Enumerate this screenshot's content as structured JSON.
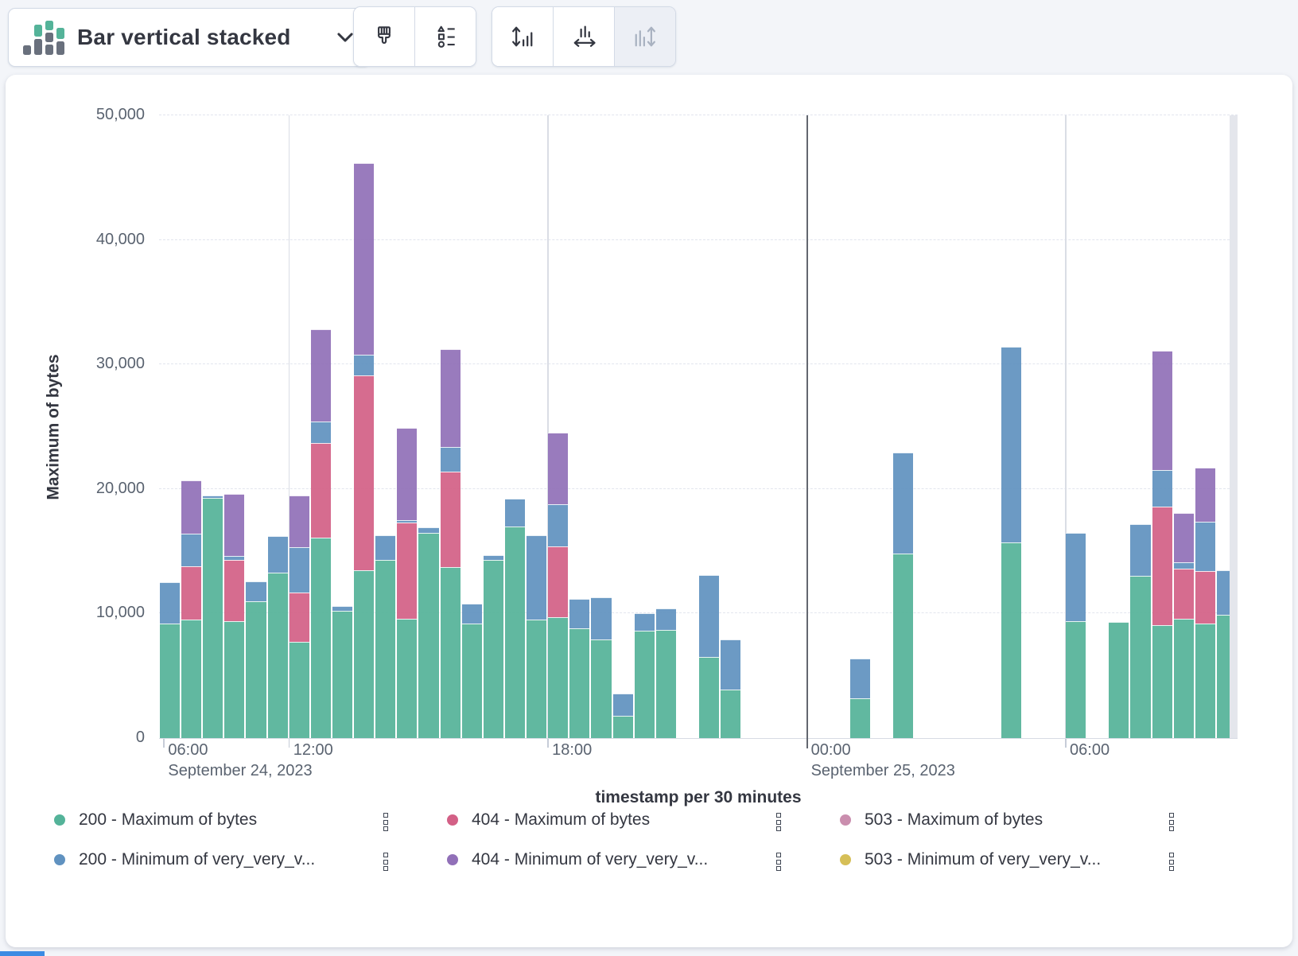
{
  "toolbar": {
    "chart_type": {
      "label": "Bar vertical stacked",
      "icon": "bar-vertical-stacked-icon"
    },
    "buttons": [
      {
        "name": "visual-options",
        "icon": "paint-brush-icon",
        "disabled": false
      },
      {
        "name": "legend-options",
        "icon": "legend-list-icon",
        "disabled": false
      },
      {
        "name": "left-axis",
        "icon": "left-axis-icon",
        "disabled": false
      },
      {
        "name": "bottom-axis",
        "icon": "bottom-axis-icon",
        "disabled": false
      },
      {
        "name": "right-axis",
        "icon": "right-axis-icon",
        "disabled": true
      }
    ]
  },
  "chart_data": {
    "type": "bar",
    "stacked": true,
    "xlabel": "timestamp per 30 minutes",
    "ylabel": "Maximum of bytes",
    "ylim": [
      0,
      50000
    ],
    "grid": "horizontal-dashed",
    "legend_position": "bottom",
    "yticks": [
      {
        "v": 0,
        "label": "0"
      },
      {
        "v": 10000,
        "label": "10,000"
      },
      {
        "v": 20000,
        "label": "20,000"
      },
      {
        "v": 30000,
        "label": "30,000"
      },
      {
        "v": 40000,
        "label": "40,000"
      },
      {
        "v": 50000,
        "label": "50,000"
      }
    ],
    "xticks": [
      {
        "label": "06:00",
        "pos": 0.004,
        "grid": false,
        "stub": true,
        "strong": false
      },
      {
        "label": "12:00",
        "pos": 0.12,
        "grid": true,
        "stub": true,
        "strong": false
      },
      {
        "label": "18:00",
        "pos": 0.36,
        "grid": true,
        "stub": true,
        "strong": false
      },
      {
        "label": "00:00",
        "pos": 0.6,
        "grid": true,
        "stub": true,
        "strong": true
      },
      {
        "label": "06:00",
        "pos": 0.84,
        "grid": true,
        "stub": true,
        "strong": false
      }
    ],
    "date_labels": [
      {
        "label": "September 24, 2023",
        "pos": 0.004
      },
      {
        "label": "September 25, 2023",
        "pos": 0.6
      }
    ],
    "slots_total": 50,
    "stack_order": [
      "200 - Maximum of bytes",
      "404 - Maximum of bytes",
      "200 - Minimum of very_very_v...",
      "404 - Minimum of very_very_v..."
    ],
    "stack_colors": [
      "#54b399",
      "#d36086",
      "#6092c0",
      "#9170b8"
    ],
    "buckets": [
      {
        "slot": 0,
        "stack": [
          9200,
          0,
          3300,
          0
        ]
      },
      {
        "slot": 1,
        "stack": [
          9500,
          4300,
          2600,
          4300
        ]
      },
      {
        "slot": 2,
        "stack": [
          19300,
          0,
          200,
          0
        ]
      },
      {
        "slot": 3,
        "stack": [
          9400,
          4900,
          300,
          5000
        ]
      },
      {
        "slot": 4,
        "stack": [
          11000,
          0,
          1600,
          0
        ]
      },
      {
        "slot": 5,
        "stack": [
          13300,
          0,
          2900,
          0
        ]
      },
      {
        "slot": 6,
        "stack": [
          7700,
          4000,
          3600,
          4200
        ]
      },
      {
        "slot": 7,
        "stack": [
          16100,
          7600,
          1700,
          7400
        ]
      },
      {
        "slot": 8,
        "stack": [
          10200,
          0,
          400,
          0
        ]
      },
      {
        "slot": 9,
        "stack": [
          13500,
          15600,
          1700,
          15400
        ]
      },
      {
        "slot": 10,
        "stack": [
          14300,
          0,
          2000,
          0
        ]
      },
      {
        "slot": 11,
        "stack": [
          9600,
          7700,
          200,
          7400
        ]
      },
      {
        "slot": 12,
        "stack": [
          16500,
          0,
          400,
          0
        ]
      },
      {
        "slot": 13,
        "stack": [
          13700,
          7700,
          2000,
          7800
        ]
      },
      {
        "slot": 14,
        "stack": [
          9200,
          0,
          1600,
          0
        ]
      },
      {
        "slot": 15,
        "stack": [
          14300,
          0,
          400,
          0
        ]
      },
      {
        "slot": 16,
        "stack": [
          17000,
          0,
          2200,
          0
        ]
      },
      {
        "slot": 17,
        "stack": [
          9500,
          0,
          6800,
          0
        ]
      },
      {
        "slot": 18,
        "stack": [
          9700,
          5700,
          3400,
          5700
        ]
      },
      {
        "slot": 19,
        "stack": [
          8800,
          0,
          2400,
          0
        ]
      },
      {
        "slot": 20,
        "stack": [
          7900,
          0,
          3400,
          0
        ]
      },
      {
        "slot": 21,
        "stack": [
          1800,
          0,
          1800,
          0
        ]
      },
      {
        "slot": 22,
        "stack": [
          8600,
          0,
          1400,
          0
        ]
      },
      {
        "slot": 23,
        "stack": [
          8700,
          0,
          1700,
          0
        ]
      },
      {
        "slot": 25,
        "stack": [
          6500,
          0,
          6600,
          0
        ]
      },
      {
        "slot": 26,
        "stack": [
          3900,
          0,
          4000,
          0
        ]
      },
      {
        "slot": 32,
        "stack": [
          3200,
          0,
          3200,
          0
        ]
      },
      {
        "slot": 34,
        "stack": [
          14800,
          0,
          8100,
          0
        ]
      },
      {
        "slot": 39,
        "stack": [
          15700,
          0,
          15700,
          0
        ]
      },
      {
        "slot": 42,
        "stack": [
          9400,
          0,
          7100,
          0
        ]
      },
      {
        "slot": 44,
        "stack": [
          9300,
          0,
          0,
          0
        ]
      },
      {
        "slot": 45,
        "stack": [
          13000,
          0,
          4200,
          0
        ]
      },
      {
        "slot": 46,
        "stack": [
          9100,
          9500,
          2900,
          9600
        ]
      },
      {
        "slot": 47,
        "stack": [
          9600,
          4000,
          500,
          4000
        ]
      },
      {
        "slot": 48,
        "stack": [
          9200,
          4200,
          4000,
          4300
        ]
      },
      {
        "slot": 49,
        "stack": [
          9900,
          0,
          3600,
          0
        ]
      }
    ]
  },
  "legend": {
    "items": [
      {
        "label": "200 - Maximum of bytes",
        "color": "#54b399"
      },
      {
        "label": "404 - Maximum of bytes",
        "color": "#d36086"
      },
      {
        "label": "503 - Maximum of bytes",
        "color": "#ca8eae"
      },
      {
        "label": "200 - Minimum of very_very_v...",
        "color": "#6092c0"
      },
      {
        "label": "404 - Minimum of very_very_v...",
        "color": "#9170b8"
      },
      {
        "label": "503 - Minimum of very_very_v...",
        "color": "#d6bf57"
      }
    ]
  }
}
